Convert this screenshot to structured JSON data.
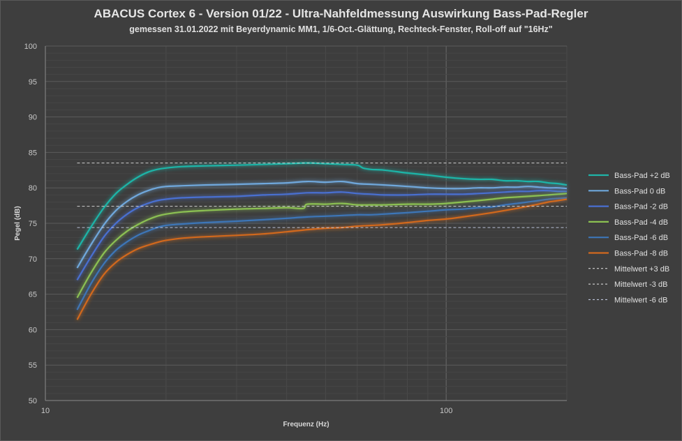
{
  "chart_data": {
    "type": "line",
    "title": "ABACUS Cortex 6 - Version 01/22 - Ultra-Nahfeldmessung Auswirkung Bass-Pad-Regler",
    "subtitle": "gemessen 31.01.2022  mit Beyerdynamic MM1, 1/6-Oct.-Glättung, Rechteck-Fenster, Roll-off auf \"16Hz\"",
    "xlabel": "Frequenz  (Hz)",
    "ylabel": "Pegel (dB)",
    "x_scale": "log",
    "xlim": [
      10,
      200
    ],
    "ylim": [
      50,
      100
    ],
    "x_ticks": [
      "10",
      "100"
    ],
    "y_ticks": [
      "50",
      "55",
      "60",
      "65",
      "70",
      "75",
      "80",
      "85",
      "90",
      "95",
      "100"
    ],
    "grid": true,
    "legend_position": "right",
    "series": [
      {
        "name": "Bass-Pad +2 dB",
        "color": "#1fb5a8",
        "x": [
          12,
          13,
          14,
          15,
          16,
          17,
          18,
          19,
          20,
          22,
          25,
          30,
          35,
          40,
          45,
          50,
          55,
          60,
          62,
          65,
          70,
          80,
          90,
          100,
          110,
          120,
          130,
          140,
          150,
          160,
          170,
          180,
          190,
          200
        ],
        "y": [
          71.3,
          74.5,
          77.2,
          79.2,
          80.5,
          81.5,
          82.2,
          82.6,
          82.8,
          83.0,
          83.1,
          83.2,
          83.3,
          83.4,
          83.5,
          83.4,
          83.3,
          83.2,
          82.8,
          82.6,
          82.5,
          82.1,
          81.8,
          81.5,
          81.3,
          81.2,
          81.2,
          81.0,
          81.0,
          80.9,
          80.9,
          80.7,
          80.6,
          80.4
        ]
      },
      {
        "name": "Bass-Pad 0 dB",
        "color": "#6fa8dc",
        "x": [
          12,
          13,
          14,
          15,
          16,
          17,
          18,
          19,
          20,
          22,
          25,
          30,
          35,
          40,
          45,
          50,
          55,
          60,
          65,
          70,
          80,
          90,
          100,
          110,
          120,
          130,
          140,
          150,
          160,
          170,
          180,
          190,
          200
        ],
        "y": [
          68.7,
          72.0,
          74.8,
          76.8,
          78.1,
          79.0,
          79.6,
          80.0,
          80.2,
          80.3,
          80.4,
          80.5,
          80.6,
          80.7,
          80.9,
          80.8,
          80.9,
          80.6,
          80.5,
          80.4,
          80.2,
          80.0,
          79.9,
          79.9,
          80.0,
          80.0,
          80.1,
          80.1,
          80.2,
          80.1,
          80.0,
          80.0,
          79.9
        ]
      },
      {
        "name": "Bass-Pad -2 dB",
        "color": "#4a6fd1",
        "x": [
          12,
          13,
          14,
          15,
          16,
          17,
          18,
          19,
          20,
          22,
          25,
          30,
          35,
          40,
          45,
          50,
          55,
          60,
          65,
          70,
          80,
          90,
          100,
          110,
          120,
          130,
          140,
          150,
          160,
          170,
          180,
          190,
          200
        ],
        "y": [
          67.0,
          70.3,
          73.1,
          75.0,
          76.3,
          77.2,
          77.8,
          78.2,
          78.4,
          78.6,
          78.7,
          78.8,
          79.0,
          79.1,
          79.3,
          79.3,
          79.4,
          79.2,
          79.1,
          79.0,
          79.0,
          79.1,
          79.1,
          79.1,
          79.2,
          79.3,
          79.4,
          79.5,
          79.5,
          79.6,
          79.6,
          79.5,
          79.5
        ]
      },
      {
        "name": "Bass-Pad -4 dB",
        "color": "#8cc152",
        "x": [
          12,
          13,
          14,
          15,
          16,
          17,
          18,
          19,
          20,
          22,
          25,
          30,
          35,
          40,
          44,
          45,
          50,
          55,
          60,
          65,
          70,
          80,
          90,
          100,
          110,
          120,
          130,
          140,
          150,
          160,
          170,
          180,
          190,
          200
        ],
        "y": [
          64.5,
          68.0,
          70.8,
          72.6,
          73.9,
          74.8,
          75.5,
          76.0,
          76.3,
          76.6,
          76.8,
          77.0,
          77.1,
          77.2,
          77.1,
          77.7,
          77.7,
          77.8,
          77.6,
          77.6,
          77.6,
          77.7,
          77.7,
          77.8,
          78.0,
          78.2,
          78.4,
          78.6,
          78.7,
          78.8,
          78.9,
          79.0,
          79.1,
          79.2
        ]
      },
      {
        "name": "Bass-Pad -6 dB",
        "color": "#3d76b8",
        "x": [
          12,
          13,
          14,
          15,
          16,
          17,
          18,
          19,
          20,
          22,
          25,
          30,
          35,
          40,
          45,
          50,
          55,
          60,
          65,
          70,
          80,
          90,
          100,
          110,
          120,
          130,
          140,
          150,
          160,
          170,
          180,
          190,
          200
        ],
        "y": [
          62.8,
          66.5,
          69.3,
          71.2,
          72.4,
          73.3,
          73.9,
          74.4,
          74.7,
          74.9,
          75.1,
          75.3,
          75.5,
          75.7,
          75.9,
          76.0,
          76.1,
          76.2,
          76.2,
          76.3,
          76.5,
          76.7,
          76.9,
          77.0,
          77.2,
          77.3,
          77.6,
          77.8,
          78.0,
          78.2,
          78.4,
          78.5,
          78.6
        ]
      },
      {
        "name": "Bass-Pad -8 dB",
        "color": "#d2691e",
        "x": [
          12,
          13,
          14,
          15,
          16,
          17,
          18,
          19,
          20,
          22,
          25,
          30,
          35,
          40,
          45,
          50,
          55,
          60,
          65,
          70,
          80,
          90,
          100,
          110,
          120,
          130,
          140,
          150,
          160,
          170,
          180,
          190,
          200
        ],
        "y": [
          61.4,
          65.0,
          67.8,
          69.5,
          70.6,
          71.4,
          71.9,
          72.3,
          72.6,
          72.9,
          73.1,
          73.3,
          73.5,
          73.8,
          74.1,
          74.3,
          74.4,
          74.6,
          74.7,
          74.8,
          75.1,
          75.4,
          75.6,
          75.9,
          76.2,
          76.5,
          76.8,
          77.1,
          77.4,
          77.7,
          78.0,
          78.2,
          78.4
        ]
      },
      {
        "name": "Mittelwert +3 dB",
        "color": "#e8e8e8",
        "dashed": true,
        "x": [
          12,
          200
        ],
        "y": [
          83.5,
          83.5
        ]
      },
      {
        "name": "Mittelwert -3 dB",
        "color": "#e8e8e8",
        "dashed": true,
        "x": [
          12,
          200
        ],
        "y": [
          77.4,
          77.4
        ]
      },
      {
        "name": "Mittelwert -6 dB",
        "color": "#cfd8f0",
        "dashed": true,
        "x": [
          12,
          200
        ],
        "y": [
          74.4,
          74.4
        ]
      }
    ]
  }
}
